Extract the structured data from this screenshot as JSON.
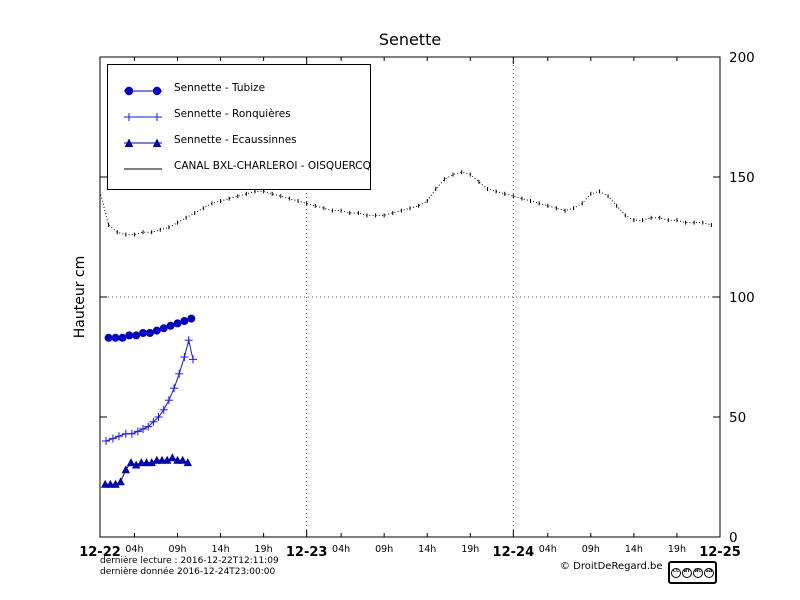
{
  "chart_data": {
    "type": "line",
    "title": "Senette",
    "xlabel": "",
    "ylabel": "Hauteur cm",
    "xlim_hours": [
      0,
      72
    ],
    "ylim": [
      0,
      200
    ],
    "grid": {
      "h_lines": [
        100
      ],
      "v_lines_hours": [
        24,
        48
      ]
    },
    "x_major_ticks": [
      {
        "hour": 0,
        "label": "12-22"
      },
      {
        "hour": 24,
        "label": "12-23"
      },
      {
        "hour": 48,
        "label": "12-24"
      },
      {
        "hour": 72,
        "label": "12-25"
      }
    ],
    "x_minor_ticks": [
      {
        "hour": 4,
        "label": "04h"
      },
      {
        "hour": 9,
        "label": "09h"
      },
      {
        "hour": 14,
        "label": "14h"
      },
      {
        "hour": 19,
        "label": "19h"
      },
      {
        "hour": 28,
        "label": "04h"
      },
      {
        "hour": 33,
        "label": "09h"
      },
      {
        "hour": 38,
        "label": "14h"
      },
      {
        "hour": 43,
        "label": "19h"
      },
      {
        "hour": 52,
        "label": "04h"
      },
      {
        "hour": 57,
        "label": "09h"
      },
      {
        "hour": 62,
        "label": "14h"
      },
      {
        "hour": 67,
        "label": "19h"
      }
    ],
    "y_ticks": [
      {
        "value": 0,
        "label": "0"
      },
      {
        "value": 50,
        "label": "50"
      },
      {
        "value": 100,
        "label": "100"
      },
      {
        "value": 150,
        "label": "150"
      },
      {
        "value": 200,
        "label": "200"
      }
    ],
    "series": [
      {
        "name": "Sennette - Tubize",
        "color": "#0000c8",
        "marker": "circle",
        "line": "solid",
        "x": [
          1,
          1.8,
          2.6,
          3.4,
          4.2,
          5,
          5.8,
          6.6,
          7.4,
          8.2,
          9,
          9.8,
          10.6
        ],
        "y": [
          83,
          83,
          83,
          84,
          84,
          85,
          85,
          86,
          87,
          88,
          89,
          90,
          91
        ]
      },
      {
        "name": "Sennette - Ronquières",
        "color": "#1414ff",
        "marker": "plus",
        "line": "solid",
        "x": [
          0.7,
          1.5,
          2.2,
          3,
          3.7,
          4.4,
          5,
          5.6,
          6.2,
          6.8,
          7.4,
          8,
          8.6,
          9.2,
          9.8,
          10.3,
          10.8
        ],
        "y": [
          40,
          41,
          42,
          43,
          43,
          44,
          45,
          46,
          48,
          50,
          53,
          57,
          62,
          68,
          75,
          82,
          74
        ]
      },
      {
        "name": "Sennette - Ecaussinnes",
        "color": "#0000b4",
        "marker": "triangle",
        "line": "solid",
        "x": [
          0.6,
          1.2,
          1.8,
          2.4,
          3,
          3.6,
          4.2,
          4.8,
          5.4,
          6,
          6.6,
          7.2,
          7.8,
          8.4,
          9,
          9.6,
          10.2
        ],
        "y": [
          22,
          22,
          22,
          23,
          28,
          31,
          30,
          31,
          31,
          31,
          32,
          32,
          32,
          33,
          32,
          32,
          31
        ]
      },
      {
        "name": "CANAL BXL-CHARLEROI - OISQUERCQ",
        "color": "#000000",
        "marker": "tick",
        "line": "dotted",
        "x": [
          0,
          1,
          2,
          3,
          4,
          5,
          6,
          7,
          8,
          9,
          10,
          11,
          12,
          13,
          14,
          15,
          16,
          17,
          18,
          19,
          20,
          21,
          22,
          23,
          24,
          25,
          26,
          27,
          28,
          29,
          30,
          31,
          32,
          33,
          34,
          35,
          36,
          37,
          38,
          39,
          40,
          41,
          42,
          43,
          44,
          45,
          46,
          47,
          48,
          49,
          50,
          51,
          52,
          53,
          54,
          55,
          56,
          57,
          58,
          59,
          60,
          61,
          62,
          63,
          64,
          65,
          66,
          67,
          68,
          69,
          70,
          71
        ],
        "y": [
          144,
          130,
          127,
          126,
          126,
          127,
          127,
          128,
          129,
          131,
          133,
          135,
          137,
          139,
          140,
          141,
          142,
          143,
          144,
          144,
          143,
          142,
          141,
          140,
          139,
          138,
          137,
          136,
          136,
          135,
          135,
          134,
          134,
          134,
          135,
          136,
          137,
          138,
          140,
          145,
          149,
          151,
          152,
          151,
          148,
          145,
          144,
          143,
          142,
          141,
          140,
          139,
          138,
          137,
          136,
          137,
          139,
          143,
          144,
          142,
          138,
          134,
          132,
          132,
          133,
          133,
          132,
          132,
          131,
          131,
          131,
          130
        ]
      }
    ]
  },
  "footer": {
    "last_reading": "dernière lecture : 2016-12-22T12:11:09",
    "last_data": "dernière donnée  2016-12-24T23:00:00",
    "copyright": "© DroitDeRegard.be",
    "cc_items": [
      "CC",
      "BY",
      "NC",
      "SA"
    ]
  }
}
